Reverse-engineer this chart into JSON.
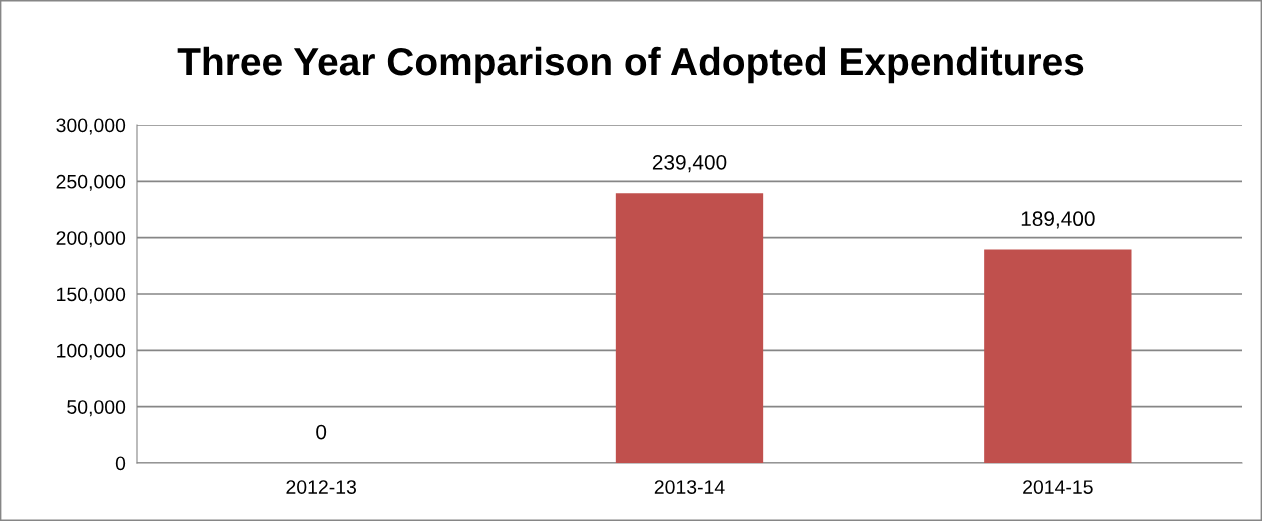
{
  "chart_data": {
    "type": "bar",
    "title": "Three Year Comparison of Adopted Expenditures",
    "categories": [
      "2012-13",
      "2013-14",
      "2014-15"
    ],
    "values": [
      0,
      239400,
      189400
    ],
    "value_labels": [
      "0",
      "239,400",
      "189,400"
    ],
    "color": "#c0504d",
    "ylim": [
      0,
      300000
    ],
    "yticks": [
      {
        "value": 0,
        "label": "0"
      },
      {
        "value": 50000,
        "label": "50,000"
      },
      {
        "value": 100000,
        "label": "100,000"
      },
      {
        "value": 150000,
        "label": "150,000"
      },
      {
        "value": 200000,
        "label": "200,000"
      },
      {
        "value": 250000,
        "label": "250,000"
      },
      {
        "value": 300000,
        "label": "300,000"
      }
    ],
    "grid": "y",
    "legend": false
  }
}
